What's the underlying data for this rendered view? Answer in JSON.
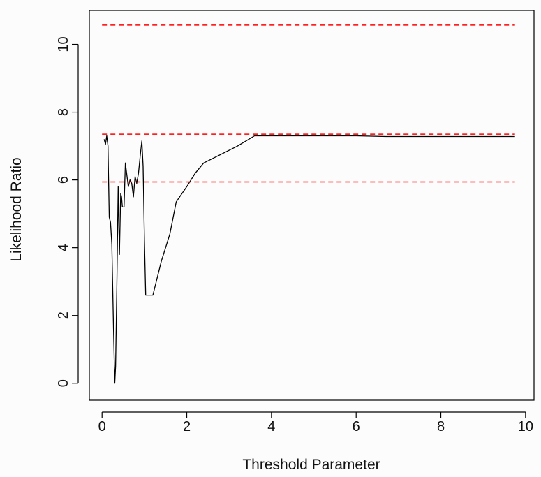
{
  "chart_data": {
    "type": "line",
    "title": "",
    "xlabel": "Threshold Parameter",
    "ylabel": "Likelihood Ratio",
    "xlim": [
      -0.3,
      10.2
    ],
    "ylim": [
      -0.5,
      11.0
    ],
    "xticks": [
      0,
      2,
      4,
      6,
      8,
      10
    ],
    "yticks": [
      0,
      2,
      4,
      6,
      8,
      10
    ],
    "grid": false,
    "series": [
      {
        "color": "#000000",
        "style": "solid",
        "x": [
          0.05,
          0.08,
          0.11,
          0.14,
          0.17,
          0.2,
          0.23,
          0.27,
          0.3,
          0.32,
          0.35,
          0.38,
          0.41,
          0.44,
          0.46,
          0.48,
          0.52,
          0.55,
          0.58,
          0.62,
          0.66,
          0.7,
          0.74,
          0.78,
          0.82,
          0.86,
          0.9,
          0.94,
          0.97,
          1.0,
          1.03,
          1.06,
          1.08,
          1.2,
          1.4,
          1.6,
          1.75,
          2.0,
          2.2,
          2.4,
          2.8,
          3.2,
          3.6,
          3.75,
          4.2,
          5.0,
          6.0,
          6.7,
          7.5,
          8.5,
          9.75
        ],
        "y": [
          7.2,
          7.05,
          7.3,
          7.0,
          4.9,
          4.75,
          4.1,
          1.6,
          0.0,
          0.5,
          2.9,
          5.8,
          3.8,
          5.6,
          5.5,
          5.2,
          5.2,
          6.5,
          6.2,
          5.8,
          6.0,
          5.9,
          5.5,
          6.1,
          5.9,
          6.2,
          6.7,
          7.15,
          6.4,
          4.2,
          2.6,
          2.6,
          2.6,
          2.6,
          3.6,
          4.4,
          5.35,
          5.8,
          6.2,
          6.5,
          6.75,
          7.0,
          7.3,
          7.3,
          7.3,
          7.3,
          7.3,
          7.28,
          7.28,
          7.28,
          7.28
        ]
      },
      {
        "color": "#ff0000",
        "style": "dashed",
        "x": [
          0.0,
          9.75
        ],
        "y": [
          10.57,
          10.57
        ]
      },
      {
        "color": "#ff0000",
        "style": "dashed",
        "x": [
          0.0,
          9.75
        ],
        "y": [
          7.35,
          7.35
        ]
      },
      {
        "color": "#ff0000",
        "style": "dashed",
        "x": [
          0.0,
          9.75
        ],
        "y": [
          5.94,
          5.94
        ]
      }
    ]
  }
}
